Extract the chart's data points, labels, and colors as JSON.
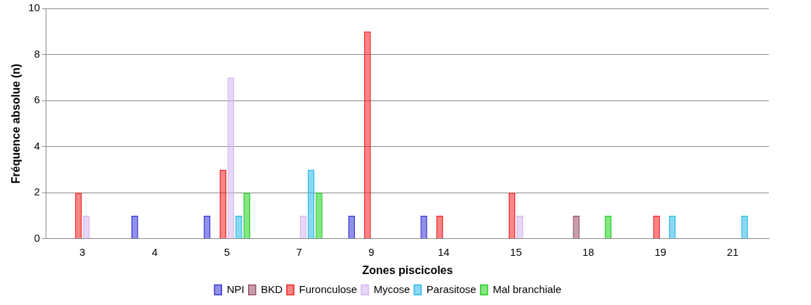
{
  "chart_data": {
    "type": "bar",
    "xlabel": "Zones piscicoles",
    "ylabel": "Fréquence absolue (n)",
    "categories": [
      "3",
      "4",
      "5",
      "7",
      "9",
      "14",
      "15",
      "18",
      "19",
      "21"
    ],
    "series": [
      {
        "name": "NPI",
        "color": "#3535d8",
        "values": [
          0,
          1,
          1,
          0,
          1,
          1,
          0,
          0,
          0,
          0
        ]
      },
      {
        "name": "BKD",
        "color": "#9a4f6a",
        "values": [
          0,
          0,
          0,
          0,
          0,
          0,
          0,
          1,
          0,
          0
        ]
      },
      {
        "name": "Furonculose",
        "color": "#f02020",
        "values": [
          2,
          0,
          3,
          0,
          9,
          1,
          2,
          0,
          1,
          0
        ]
      },
      {
        "name": "Mycose",
        "color": "#d6b4ee",
        "values": [
          1,
          0,
          7,
          1,
          0,
          0,
          1,
          0,
          0,
          0
        ]
      },
      {
        "name": "Parasitose",
        "color": "#28b8e8",
        "values": [
          0,
          0,
          1,
          3,
          0,
          0,
          0,
          0,
          1,
          1
        ]
      },
      {
        "name": "Mal branchiale",
        "color": "#20d020",
        "values": [
          0,
          0,
          2,
          2,
          0,
          0,
          0,
          1,
          0,
          0
        ]
      }
    ],
    "ylim": [
      0,
      10
    ],
    "yticks": [
      0,
      2,
      4,
      6,
      8,
      10
    ],
    "grid": "y",
    "legend": "bottom"
  }
}
